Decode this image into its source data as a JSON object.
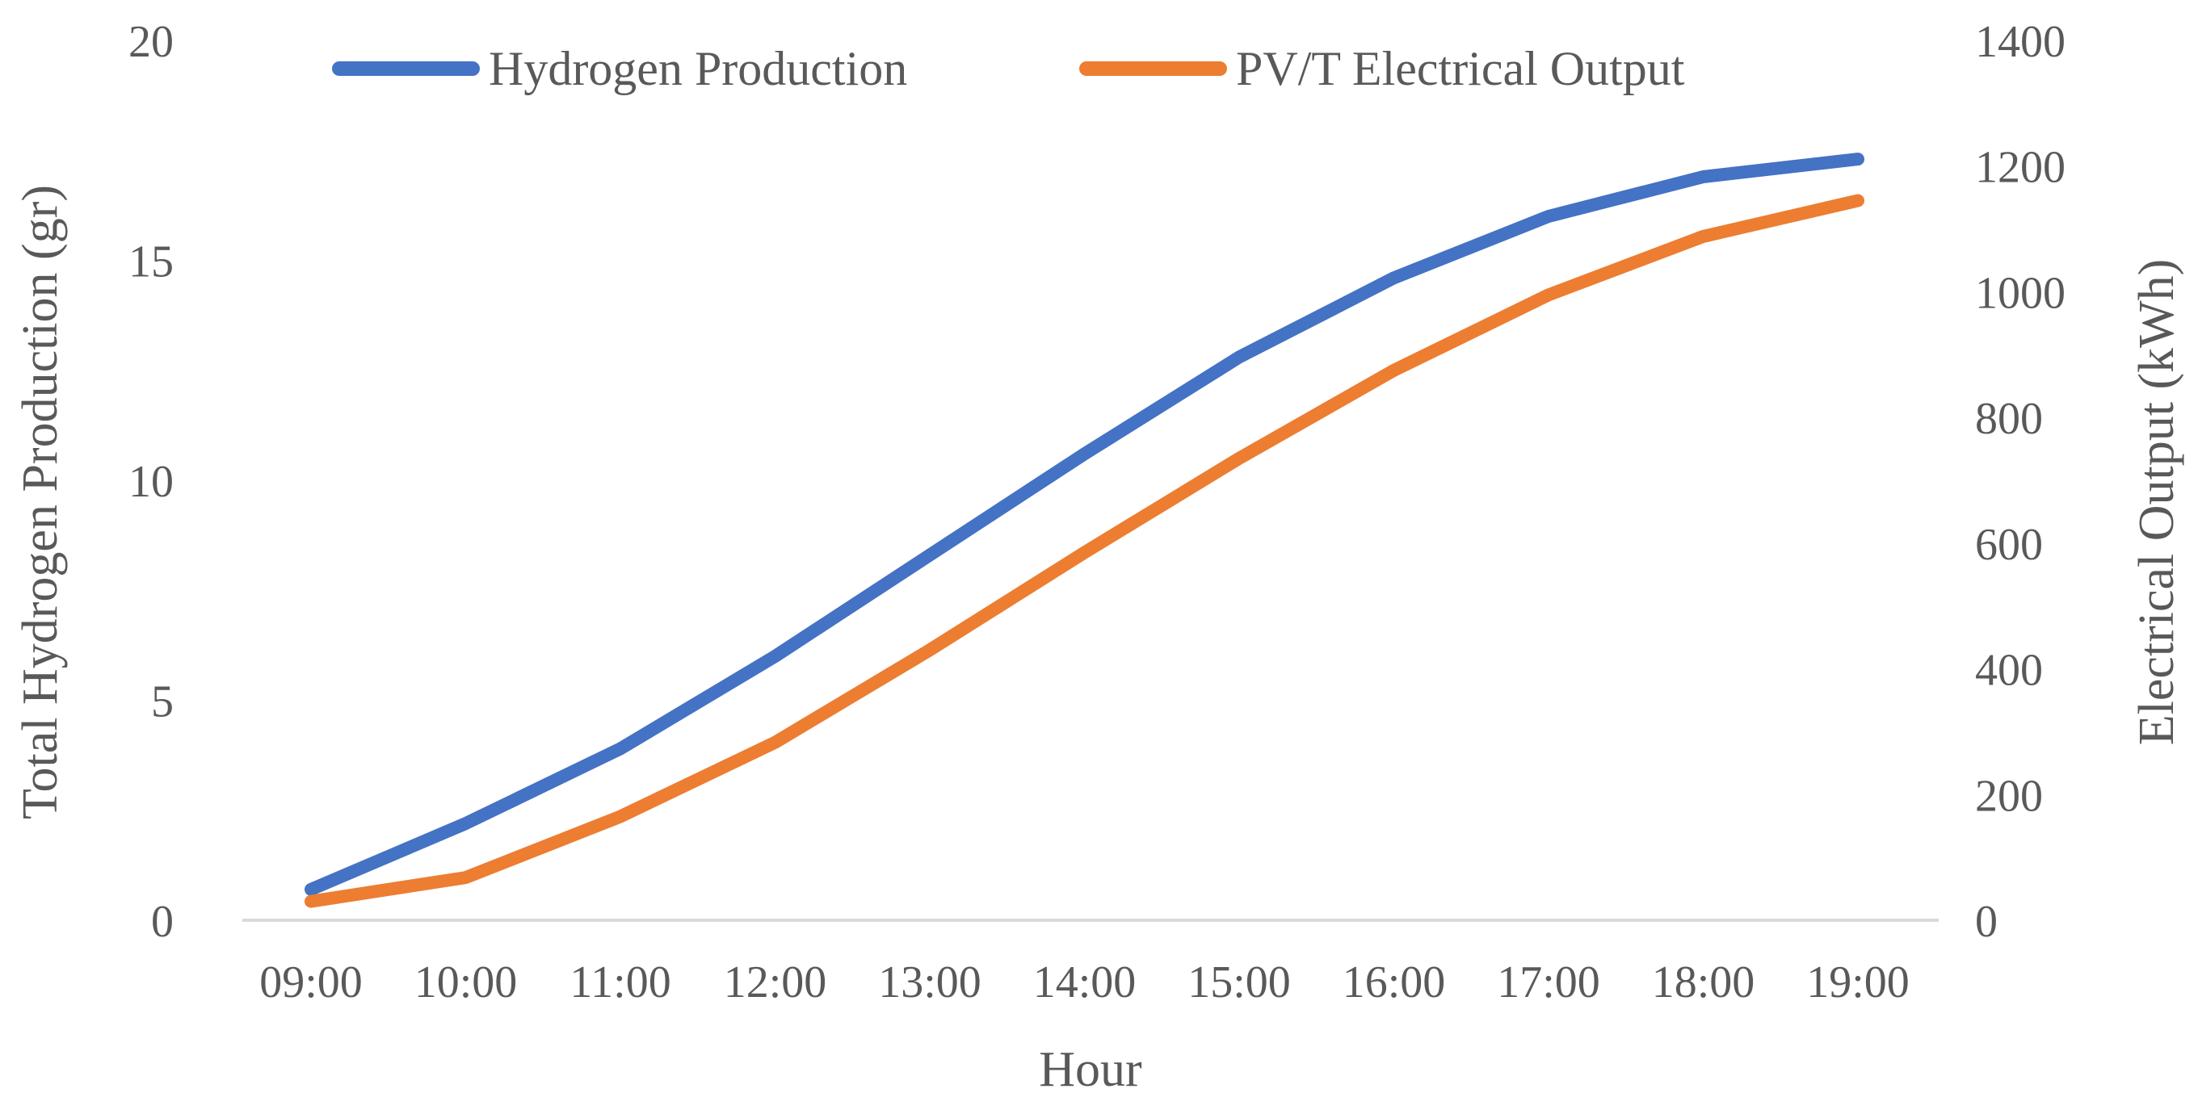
{
  "chart_data": {
    "type": "line",
    "title": "",
    "x": [
      "09:00",
      "10:00",
      "11:00",
      "12:00",
      "13:00",
      "14:00",
      "15:00",
      "16:00",
      "17:00",
      "18:00",
      "19:00"
    ],
    "xlabel": "Hour",
    "ylabel_left": "Total Hydrogen Production (gr)",
    "ylabel_right": "Electrical Output (kWh)",
    "ylim_left": [
      0,
      20
    ],
    "ylim_right": [
      0,
      1400
    ],
    "yticks_left": [
      "0",
      "5",
      "10",
      "15",
      "20"
    ],
    "yticks_right": [
      "0",
      "200",
      "400",
      "600",
      "800",
      "1000",
      "1200",
      "1400"
    ],
    "grid": false,
    "legend_position": "top",
    "series": [
      {
        "name": "Hydrogen Production",
        "axis": "left",
        "color": "#4472C4",
        "values": [
          0.7,
          2.2,
          3.9,
          6.0,
          8.3,
          10.6,
          12.8,
          14.6,
          16.0,
          16.9,
          17.3
        ]
      },
      {
        "name": "PV/T Electrical Output",
        "axis": "right",
        "color": "#ED7D31",
        "values": [
          30,
          68,
          165,
          283,
          430,
          585,
          735,
          875,
          995,
          1088,
          1145
        ]
      }
    ]
  }
}
